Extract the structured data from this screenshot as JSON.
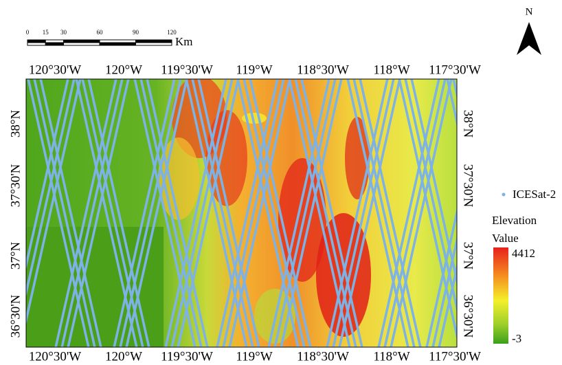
{
  "map": {
    "north_label": "N",
    "scale_bar": {
      "ticks": [
        0,
        15,
        30,
        60,
        90,
        120
      ],
      "unit": "Km"
    },
    "lon_labels_top": [
      "120°30'W",
      "120°W",
      "119°30'W",
      "119°W",
      "118°30'W",
      "118°W",
      "117°30'W"
    ],
    "lon_labels_bottom": [
      "120°30'W",
      "120°W",
      "119°30'W",
      "119°W",
      "118°30'W",
      "118°W",
      "117°30'W"
    ],
    "lat_labels_left": [
      "38°N",
      "37°30'N",
      "37°N",
      "36°30'N"
    ],
    "lat_labels_right": [
      "38°N",
      "37°30'N",
      "37°N",
      "36°30'N"
    ]
  },
  "legend": {
    "track_label": "ICESat-2",
    "title": "Elevation Value",
    "max": 4412,
    "min": -3
  }
}
